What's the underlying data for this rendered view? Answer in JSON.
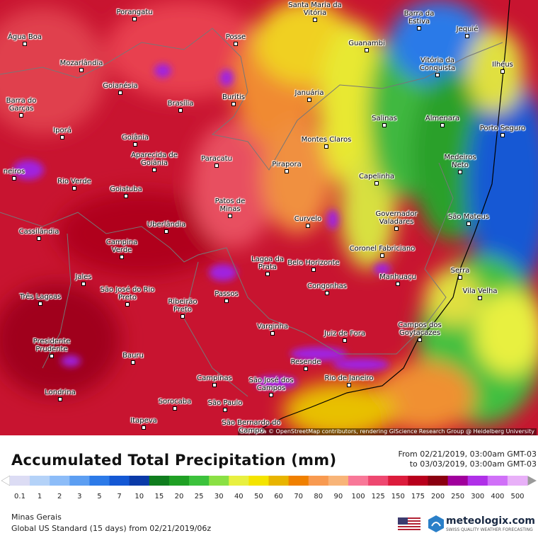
{
  "map": {
    "cities": [
      "Porangatu",
      "Santa Maria da Vitória",
      "Barra da Estiva",
      "Jequié",
      "Água Boa",
      "Posse",
      "Guanambi",
      "Mozarlândia",
      "Vitória da Conquista",
      "Ilhéus",
      "Goianésia",
      "Barra do Garças",
      "Buritis",
      "Januária",
      "Brasília",
      "Salinas",
      "Almenara",
      "Porto Seguro",
      "Iporá",
      "Goiânia",
      "Montes Claros",
      "Aparecida de Goiânia",
      "Paracatu",
      "Medeiros Neto",
      "Pirapora",
      "Capelinha",
      "Rio Verde",
      "Goiatuba",
      "Patos de Minas",
      "Governador Valadares",
      "São Mateus",
      "Curvelo",
      "Uberlândia",
      "Cassilândia",
      "Campina Verde",
      "Coronel Fabriciano",
      "Lagoa da Prata",
      "Belo Horizonte",
      "Manhuaçu",
      "Serra",
      "Jales",
      "Congonhas",
      "Vila Velha",
      "São José do Rio Preto",
      "Passos",
      "Três Lagoas",
      "Ribeirão Preto",
      "Campos dos Goytacazes",
      "Varginha",
      "Juiz de Fora",
      "Presidente Prudente",
      "Resende",
      "Bauru",
      "São José dos Campos",
      "Rio de Janeiro",
      "Campinas",
      "Londrina",
      "Sorocaba",
      "São Paulo",
      "São Bernardo do Campo",
      "Itapeva",
      "neiros"
    ],
    "attribution": "Map data © OpenStreetMap contributors, rendering GIScience Research Group @ Heidelberg University"
  },
  "header": {
    "title": "Accumulated Total Precipitation (mm)",
    "from": "From 02/21/2019, 03:00am GMT-03",
    "to": "to 03/03/2019, 03:00am GMT-03"
  },
  "legend": {
    "ticks": [
      0.1,
      1,
      2,
      3,
      5,
      7,
      10,
      15,
      20,
      25,
      30,
      40,
      50,
      60,
      70,
      80,
      90,
      100,
      125,
      150,
      175,
      200,
      250,
      300,
      400,
      500
    ],
    "colors": [
      "#dcdcf4",
      "#b4d2f8",
      "#8cbcf8",
      "#5c9ef2",
      "#2c7ae8",
      "#1458d4",
      "#0a3aa8",
      "#0f7d1e",
      "#1fa024",
      "#3cc23c",
      "#8ae044",
      "#e8f040",
      "#f4e400",
      "#e8b400",
      "#f08000",
      "#f89a50",
      "#f8b478",
      "#f87898",
      "#ee4870",
      "#dc1c3c",
      "#b8001c",
      "#8a0010",
      "#a0009c",
      "#b030e8",
      "#d070f8",
      "#e8b0f8"
    ],
    "under_color": "#ffffff",
    "over_color": "#9a9a9a"
  },
  "footer": {
    "region": "Minas Gerais",
    "model": "Global US Standard (15 days) from 02/21/2019/06z",
    "brand": "meteologix.com",
    "tagline": "SWISS QUALITY WEATHER FORECASTING"
  }
}
